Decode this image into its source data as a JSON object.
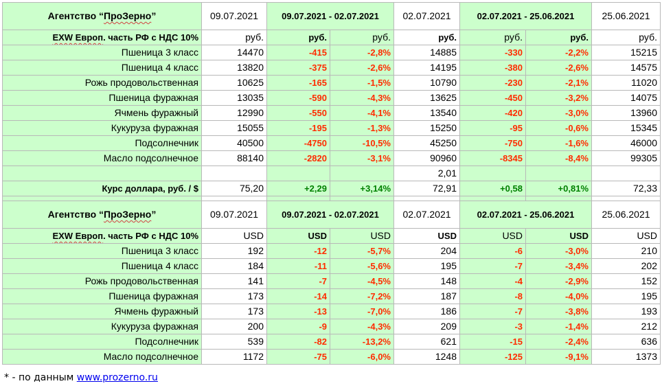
{
  "rub_table": {
    "agency_prefix": "Агентство “",
    "agency_brand": "ПроЗерно",
    "agency_suffix": "”",
    "date1": "09.07.2021",
    "range1": "09.07.2021 - 02.07.2021",
    "date2": "02.07.2021",
    "range2": "02.07.2021 - 25.06.2021",
    "date3": "25.06.2021",
    "unit_label_a": "EXW Европ",
    "unit_label_b": ". часть РФ с НДС 10%",
    "units": [
      "руб.",
      "руб.",
      "руб.",
      "руб.",
      "руб.",
      "руб.",
      "руб."
    ],
    "rows": [
      {
        "name": "Пшеница 3 класс",
        "v1": "14470",
        "d1": "-415",
        "p1": "-2,8%",
        "v2": "14885",
        "d2": "-330",
        "p2": "-2,2%",
        "v3": "15215"
      },
      {
        "name": "Пшеница 4 класс",
        "v1": "13820",
        "d1": "-375",
        "p1": "-2,6%",
        "v2": "14195",
        "d2": "-380",
        "p2": "-2,6%",
        "v3": "14575"
      },
      {
        "name": "Рожь продовольственная",
        "v1": "10625",
        "d1": "-165",
        "p1": "-1,5%",
        "v2": "10790",
        "d2": "-230",
        "p2": "-2,1%",
        "v3": "11020"
      },
      {
        "name": "Пшеница фуражная",
        "v1": "13035",
        "d1": "-590",
        "p1": "-4,3%",
        "v2": "13625",
        "d2": "-450",
        "p2": "-3,2%",
        "v3": "14075"
      },
      {
        "name": "Ячмень фуражный",
        "v1": "12990",
        "d1": "-550",
        "p1": "-4,1%",
        "v2": "13540",
        "d2": "-420",
        "p2": "-3,0%",
        "v3": "13960"
      },
      {
        "name": "Кукуруза фуражная",
        "v1": "15055",
        "d1": "-195",
        "p1": "-1,3%",
        "v2": "15250",
        "d2": "-95",
        "p2": "-0,6%",
        "v3": "15345"
      },
      {
        "name": "Подсолнечник",
        "v1": "40500",
        "d1": "-4750",
        "p1": "-10,5%",
        "v2": "45250",
        "d2": "-750",
        "p2": "-1,6%",
        "v3": "46000"
      },
      {
        "name": "Масло подсолнечное",
        "v1": "88140",
        "d1": "-2820",
        "p1": "-3,1%",
        "v2": "90960",
        "d2": "-8345",
        "p2": "-8,4%",
        "v3": "99305"
      }
    ],
    "extra_value": "2,01",
    "usd_rate": {
      "name": "Курс доллара, руб. / $",
      "v1": "75,20",
      "d1": "+2,29",
      "p1": "+3,14%",
      "v2": "72,91",
      "d2": "+0,58",
      "p2": "+0,81%",
      "v3": "72,33"
    }
  },
  "usd_table": {
    "agency_prefix": "Агентство “",
    "agency_brand": "ПроЗерно",
    "agency_suffix": "”",
    "date1": "09.07.2021",
    "range1": "09.07.2021 - 02.07.2021",
    "date2": "02.07.2021",
    "range2": "02.07.2021 - 25.06.2021",
    "date3": "25.06.2021",
    "unit_label_a": "EXW Европ",
    "unit_label_b": ". часть РФ с НДС 10%",
    "units": [
      "USD",
      "USD",
      "USD",
      "USD",
      "USD",
      "USD",
      "USD"
    ],
    "rows": [
      {
        "name": "Пшеница 3 класс",
        "v1": "192",
        "d1": "-12",
        "p1": "-5,7%",
        "v2": "204",
        "d2": "-6",
        "p2": "-3,0%",
        "v3": "210"
      },
      {
        "name": "Пшеница 4 класс",
        "v1": "184",
        "d1": "-11",
        "p1": "-5,6%",
        "v2": "195",
        "d2": "-7",
        "p2": "-3,4%",
        "v3": "202"
      },
      {
        "name": "Рожь продовольственная",
        "v1": "141",
        "d1": "-7",
        "p1": "-4,5%",
        "v2": "148",
        "d2": "-4",
        "p2": "-2,9%",
        "v3": "152"
      },
      {
        "name": "Пшеница фуражная",
        "v1": "173",
        "d1": "-14",
        "p1": "-7,2%",
        "v2": "187",
        "d2": "-8",
        "p2": "-4,0%",
        "v3": "195"
      },
      {
        "name": "Ячмень фуражный",
        "v1": "173",
        "d1": "-13",
        "p1": "-7,0%",
        "v2": "186",
        "d2": "-7",
        "p2": "-3,8%",
        "v3": "193"
      },
      {
        "name": "Кукуруза фуражная",
        "v1": "200",
        "d1": "-9",
        "p1": "-4,3%",
        "v2": "209",
        "d2": "-3",
        "p2": "-1,4%",
        "v3": "212"
      },
      {
        "name": "Подсолнечник",
        "v1": "539",
        "d1": "-82",
        "p1": "-13,2%",
        "v2": "621",
        "d2": "-15",
        "p2": "-2,4%",
        "v3": "636"
      },
      {
        "name": "Масло подсолнечное",
        "v1": "1172",
        "d1": "-75",
        "p1": "-6,0%",
        "v2": "1248",
        "d2": "-125",
        "p2": "-9,1%",
        "v3": "1373"
      }
    ]
  },
  "footnote": {
    "prefix": "* - по данным ",
    "link": "www.prozerno.ru"
  }
}
